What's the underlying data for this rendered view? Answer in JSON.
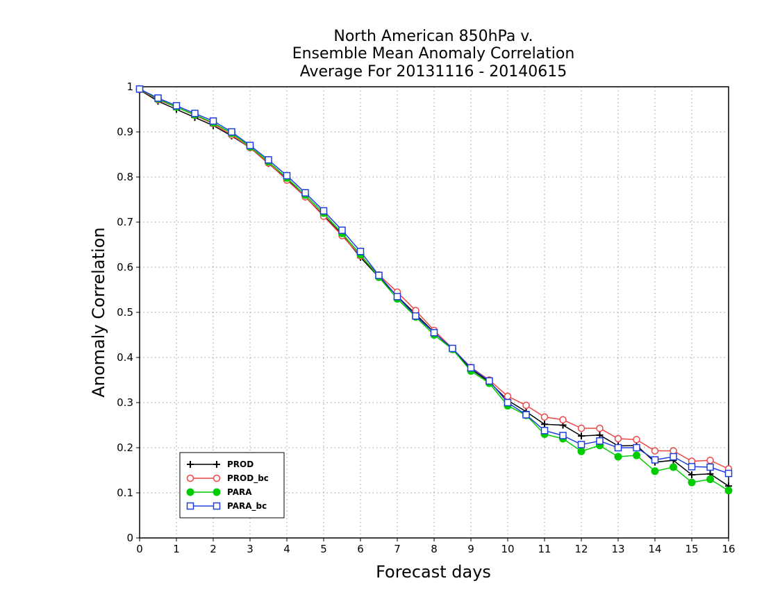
{
  "chart_data": {
    "type": "line",
    "title_lines": [
      "North American 850hPa v.",
      "Ensemble Mean Anomaly Correlation",
      "Average For 20131116 - 20140615"
    ],
    "xlabel": "Forecast days",
    "ylabel": "Anomaly Correlation",
    "xlim": [
      0,
      16
    ],
    "ylim": [
      0,
      1
    ],
    "x_ticks": [
      "0",
      "1",
      "2",
      "3",
      "4",
      "5",
      "6",
      "7",
      "8",
      "9",
      "10",
      "11",
      "12",
      "13",
      "14",
      "15",
      "16"
    ],
    "y_ticks": [
      "0",
      "0.1",
      "0.2",
      "0.3",
      "0.4",
      "0.5",
      "0.6",
      "0.7",
      "0.8",
      "0.9",
      "1"
    ],
    "grid": true,
    "legend_position": "bottom-left",
    "x": [
      0,
      0.5,
      1,
      1.5,
      2,
      2.5,
      3,
      3.5,
      4,
      4.5,
      5,
      5.5,
      6,
      6.5,
      7,
      7.5,
      8,
      8.5,
      9,
      9.5,
      10,
      10.5,
      11,
      11.5,
      12,
      12.5,
      13,
      13.5,
      14,
      14.5,
      15,
      15.5,
      16
    ],
    "series": [
      {
        "name": "PROD",
        "color": "#000000",
        "marker": "plus",
        "values": [
          0.993,
          0.968,
          0.95,
          0.932,
          0.914,
          0.891,
          0.865,
          0.83,
          0.795,
          0.756,
          0.715,
          0.672,
          0.622,
          0.578,
          0.536,
          0.496,
          0.456,
          0.418,
          0.374,
          0.346,
          0.305,
          0.28,
          0.252,
          0.25,
          0.226,
          0.228,
          0.204,
          0.205,
          0.168,
          0.172,
          0.14,
          0.142,
          0.115
        ]
      },
      {
        "name": "PROD_bc",
        "color": "#ee4444",
        "marker": "circle-open",
        "values": [
          0.994,
          0.971,
          0.955,
          0.937,
          0.918,
          0.893,
          0.865,
          0.831,
          0.793,
          0.756,
          0.713,
          0.67,
          0.625,
          0.583,
          0.545,
          0.504,
          0.46,
          0.42,
          0.378,
          0.35,
          0.314,
          0.294,
          0.268,
          0.262,
          0.243,
          0.243,
          0.22,
          0.218,
          0.193,
          0.193,
          0.17,
          0.172,
          0.153
        ]
      },
      {
        "name": "PARA",
        "color": "#00cc00",
        "marker": "circle-filled",
        "values": [
          0.995,
          0.973,
          0.955,
          0.938,
          0.92,
          0.897,
          0.867,
          0.834,
          0.798,
          0.76,
          0.72,
          0.675,
          0.628,
          0.578,
          0.53,
          0.49,
          0.45,
          0.418,
          0.37,
          0.343,
          0.293,
          0.272,
          0.23,
          0.22,
          0.192,
          0.205,
          0.18,
          0.183,
          0.148,
          0.157,
          0.123,
          0.13,
          0.105
        ]
      },
      {
        "name": "PARA_bc",
        "color": "#1e3fdd",
        "marker": "square-open",
        "values": [
          0.995,
          0.975,
          0.958,
          0.941,
          0.924,
          0.9,
          0.87,
          0.838,
          0.803,
          0.765,
          0.725,
          0.682,
          0.635,
          0.582,
          0.535,
          0.492,
          0.455,
          0.42,
          0.377,
          0.348,
          0.3,
          0.273,
          0.238,
          0.227,
          0.207,
          0.215,
          0.2,
          0.2,
          0.173,
          0.18,
          0.158,
          0.157,
          0.143
        ]
      }
    ]
  }
}
